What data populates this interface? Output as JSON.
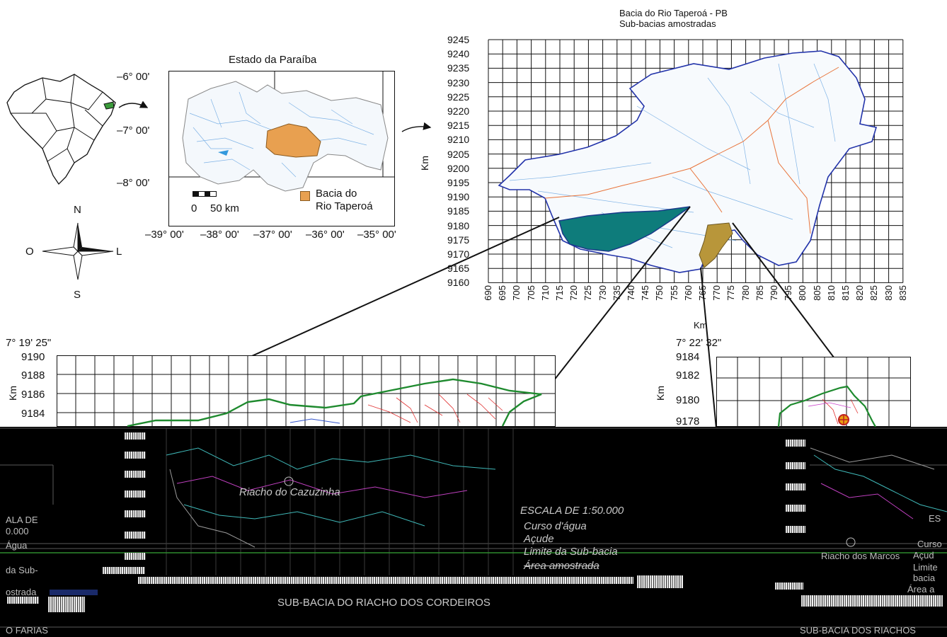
{
  "paraiba_map": {
    "title": "Estado da Paraíba",
    "lat_labels": [
      "–6° 00'",
      "–7° 00'",
      "–8° 00'"
    ],
    "lon_labels": [
      "–39° 00'",
      "–38° 00'",
      "–37° 00'",
      "–36° 00'",
      "–35° 00'"
    ],
    "scale_zero": "0",
    "scale_text": "50 km",
    "legend_line1": "Bacia do",
    "legend_line2": "Rio Taperoá",
    "basin_color": "#E8A050"
  },
  "compass": {
    "north": "N",
    "south": "S",
    "west": "O",
    "east": "L"
  },
  "grid_map": {
    "title_line1": "Bacia do Rio Taperoá - PB",
    "title_line2": "Sub-bacias amostradas",
    "y_axis_label": "Km",
    "x_axis_label": "Km",
    "y_ticks": [
      "9245",
      "9240",
      "9235",
      "9230",
      "9225",
      "9220",
      "9215",
      "9210",
      "9205",
      "9200",
      "9195",
      "9190",
      "9185",
      "9180",
      "9175",
      "9170",
      "9165",
      "9160"
    ],
    "x_ticks": [
      "690",
      "695",
      "700",
      "705",
      "710",
      "715",
      "720",
      "725",
      "730",
      "735",
      "740",
      "745",
      "750",
      "755",
      "760",
      "765",
      "770",
      "775",
      "780",
      "785",
      "790",
      "795",
      "800",
      "805",
      "810",
      "815",
      "820",
      "825",
      "830",
      "835"
    ],
    "subbasin_colors": {
      "west": "#0E7C7B",
      "south": "#B8963A"
    }
  },
  "lower_left": {
    "coord": "7° 19' 25\"",
    "y_ticks": [
      "9190",
      "9188",
      "9186",
      "9184"
    ],
    "y_axis_label": "Km"
  },
  "lower_right": {
    "coord": "7° 22' 32\"",
    "y_ticks": [
      "9184",
      "9182",
      "9180",
      "9178"
    ],
    "y_axis_label": "Km"
  },
  "overlay": {
    "stream_name": "Riacho do Cazuzinha",
    "scale_text": "ESCALA DE 1:50.000",
    "legend_stream": "Curso d'água",
    "legend_reservoir": "Açude",
    "legend_boundary": "Limite da Sub-bacia",
    "legend_sampled": "Área amostrada",
    "left_cut_1": "ALA DE",
    "left_cut_2": "0.000",
    "left_cut_3": "Água",
    "left_cut_4": "da Sub-",
    "left_cut_5": "ostrada",
    "left_cut_6": "O FARIAS",
    "center_title": "SUB-BACIA DO RIACHO DOS CORDEIROS",
    "right_stream": "Riacho dos Marcos",
    "right_scale": "ES",
    "right_leg1": "Curso",
    "right_leg2": "Açud",
    "right_leg3": "Limite",
    "right_leg4": "bacia",
    "right_leg5": "Área a",
    "right_bottom": "SUB-BACIA DOS RIACHOS"
  }
}
